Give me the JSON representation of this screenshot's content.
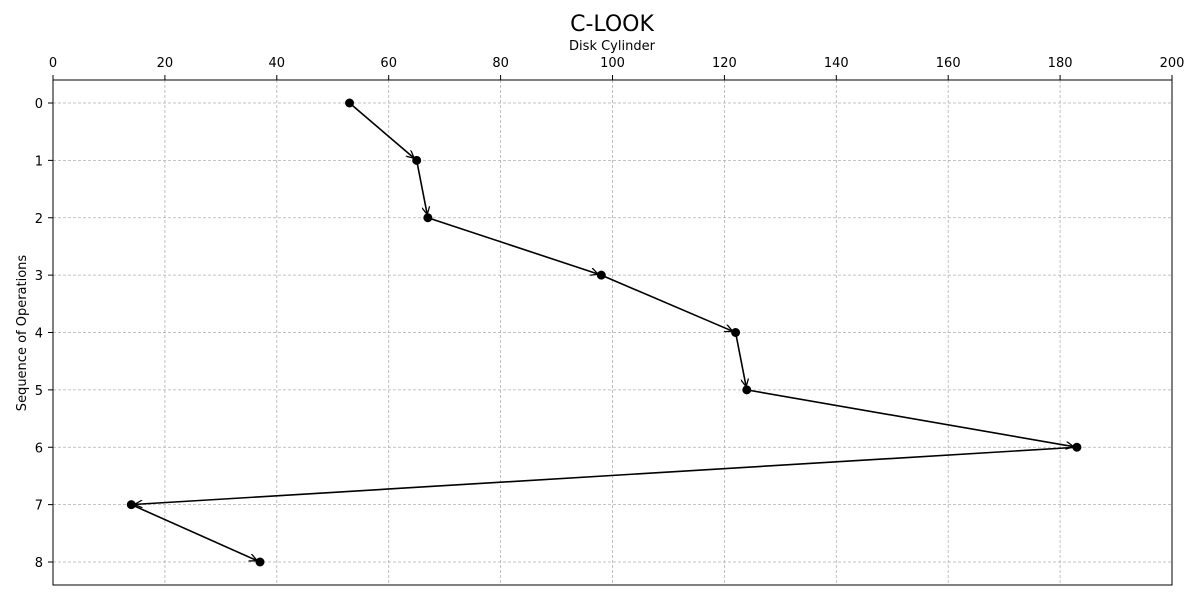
{
  "chart_data": {
    "type": "line",
    "title": "C-LOOK",
    "xlabel": "Disk Cylinder",
    "ylabel": "Sequence of Operations",
    "x_axis_position": "top",
    "y_axis_inverted": true,
    "xlim": [
      0,
      200
    ],
    "ylim": [
      0,
      8
    ],
    "xticks": [
      0,
      20,
      40,
      60,
      80,
      100,
      120,
      140,
      160,
      180,
      200
    ],
    "yticks": [
      0,
      1,
      2,
      3,
      4,
      5,
      6,
      7,
      8
    ],
    "grid": true,
    "arrows": true,
    "marker": "circle",
    "color": "#000000",
    "points": [
      {
        "seq": 0,
        "cylinder": 53
      },
      {
        "seq": 1,
        "cylinder": 65
      },
      {
        "seq": 2,
        "cylinder": 67
      },
      {
        "seq": 3,
        "cylinder": 98
      },
      {
        "seq": 4,
        "cylinder": 122
      },
      {
        "seq": 5,
        "cylinder": 124
      },
      {
        "seq": 6,
        "cylinder": 183
      },
      {
        "seq": 7,
        "cylinder": 14
      },
      {
        "seq": 8,
        "cylinder": 37
      }
    ]
  }
}
